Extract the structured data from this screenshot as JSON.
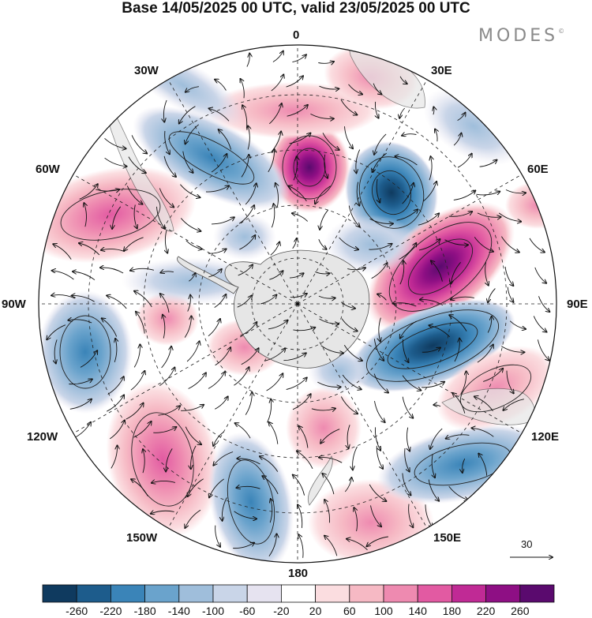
{
  "title": "Base 14/05/2025 00 UTC, valid 23/05/2025 00 UTC",
  "brand": "MODES",
  "brand_mark": "©",
  "longitude_labels": [
    "0",
    "30E",
    "60E",
    "90E",
    "120E",
    "150E",
    "180",
    "150W",
    "120W",
    "90W",
    "60W",
    "30W"
  ],
  "reference_vector": {
    "label": "30"
  },
  "map": {
    "projection": "south-polar-stereographic",
    "land_color": "#e6e6e6",
    "anomaly_centers": [
      {
        "lon_dir": "5E",
        "value": 240
      },
      {
        "lon_dir": "35E",
        "value": -220
      },
      {
        "lon_dir": "70E",
        "value": 260
      },
      {
        "lon_dir": "100E",
        "value": -200
      },
      {
        "lon_dir": "30W",
        "value": -180
      },
      {
        "lon_dir": "60W",
        "value": 160
      },
      {
        "lon_dir": "100W",
        "value": -140
      },
      {
        "lon_dir": "140W",
        "value": 160
      },
      {
        "lon_dir": "155W",
        "value": -120
      },
      {
        "lon_dir": "170E",
        "value": 80
      },
      {
        "lon_dir": "125E",
        "value": -160
      },
      {
        "lon_dir": "120E",
        "value": 80
      }
    ]
  },
  "colorbar": {
    "tick_labels": [
      "-260",
      "-220",
      "-180",
      "-140",
      "-100",
      "-60",
      "-20",
      "20",
      "60",
      "100",
      "140",
      "180",
      "220",
      "260"
    ],
    "colors": [
      "#0f3a5f",
      "#1d5c8c",
      "#3a84b8",
      "#6aa3cc",
      "#9fbedb",
      "#c9d5e8",
      "#e6e3f0",
      "#ffffff",
      "#fbdde0",
      "#f6b9c4",
      "#ee8ab0",
      "#e25aa2",
      "#c02a95",
      "#8e0f84",
      "#5a0a6e"
    ]
  }
}
